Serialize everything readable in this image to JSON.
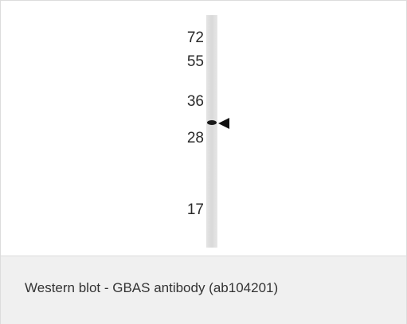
{
  "figure": {
    "markers": [
      "72",
      "55",
      "36",
      "28",
      "17"
    ]
  },
  "caption": "Western blot - GBAS antibody (ab104201)"
}
